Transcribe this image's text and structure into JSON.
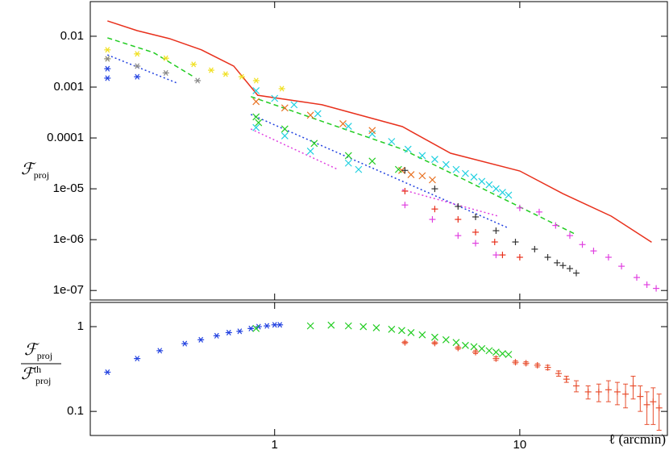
{
  "chart_data": [
    {
      "type": "scatter",
      "log_x": true,
      "log_y": true,
      "ylabel": {
        "main": "ℱ",
        "sub": "proj"
      },
      "xlim": [
        0.177,
        40
      ],
      "ylim": [
        6.5e-08,
        0.048
      ],
      "yticks": [
        0.01,
        0.001,
        0.0001,
        {
          "value": 1e-05,
          "label": "1e-05"
        },
        {
          "value": 1e-06,
          "label": "1e-06"
        },
        {
          "value": 1e-07,
          "label": "1e-07"
        }
      ],
      "series": [
        {
          "color": "#e8301c",
          "line": "solid",
          "x": [
            0.208,
            0.275,
            0.372,
            0.503,
            0.681,
            0.853,
            1.56,
            3.32,
            5.22,
            10,
            15.0,
            23.6,
            34.5
          ],
          "values": [
            0.02,
            0.0129,
            0.009,
            0.0054,
            0.00259,
            0.00069,
            0.00045,
            0.000167,
            5e-05,
            2.24e-05,
            8e-06,
            2.9e-06,
            8.9e-07
          ]
        },
        {
          "color": "#22cc22",
          "line": "dashed",
          "x": [
            0.208,
            0.32,
            0.467
          ],
          "values": [
            0.0093,
            0.0048,
            0.0016
          ]
        },
        {
          "color": "#22cc22",
          "line": "dashed",
          "x": [
            0.8,
            3.32,
            16.8
          ],
          "values": [
            0.00065,
            6e-05,
            1.29e-06
          ]
        },
        {
          "color": "#2040e0",
          "line": "dotted",
          "x": [
            0.208,
            0.4
          ],
          "values": [
            0.0043,
            0.0012
          ]
        },
        {
          "color": "#2040e0",
          "line": "dotted",
          "x": [
            0.8,
            8.86
          ],
          "values": [
            0.00029,
            1.74e-06
          ]
        },
        {
          "color": "#e040e0",
          "line": "dotted",
          "x": [
            0.8,
            1.81
          ],
          "values": [
            0.00015,
            2.4e-05
          ]
        },
        {
          "color": "#e040e0",
          "line": "dotted",
          "x": [
            3.32,
            8.2
          ],
          "values": [
            9.6e-06,
            2.88e-06
          ]
        },
        {
          "color": "#2040e0",
          "marker": "star",
          "x": [
            0.208,
            0.208,
            0.275
          ],
          "values": [
            0.0023,
            0.0015,
            0.0016
          ]
        },
        {
          "color": "#f0e020",
          "marker": "star",
          "x": [
            0.208,
            0.208,
            0.275,
            0.36,
            0.467,
            0.551,
            0.631,
            0.734,
            0.841,
            1.07
          ],
          "values": [
            0.0054,
            0.0036,
            0.0045,
            0.0037,
            0.0028,
            0.00215,
            0.0018,
            0.0016,
            0.00134,
            0.00093
          ]
        },
        {
          "color": "#888888",
          "marker": "star",
          "x": [
            0.208,
            0.275,
            0.36,
            0.485
          ],
          "values": [
            0.0036,
            0.00259,
            0.0019,
            0.00134
          ]
        },
        {
          "color": "#20d0e0",
          "marker": "x",
          "x": [
            0.84,
            1.0,
            1.2,
            1.5,
            2.0,
            2.5,
            3.0,
            3.5,
            4.0,
            4.5,
            5.0,
            5.5,
            6.0,
            6.5,
            7.0,
            7.5,
            8.0,
            8.5,
            9.0
          ],
          "values": [
            0.00085,
            0.0006,
            0.00045,
            0.0003,
            0.00017,
            0.00012,
            8.5e-05,
            6e-05,
            4.5e-05,
            3.8e-05,
            3e-05,
            2.4e-05,
            2e-05,
            1.7e-05,
            1.4e-05,
            1.2e-05,
            1e-05,
            8.5e-06,
            7.5e-06
          ]
        },
        {
          "color": "#20d0e0",
          "marker": "x",
          "x": [
            0.84,
            1.1,
            1.4,
            2.0,
            2.2
          ],
          "values": [
            0.00016,
            0.00011,
            5.5e-05,
            3.2e-05,
            2.4e-05
          ]
        },
        {
          "color": "#e87020",
          "marker": "x",
          "x": [
            0.84,
            1.1,
            1.4,
            1.9,
            2.5,
            3.3,
            3.6,
            4.0,
            4.4
          ],
          "values": [
            0.00052,
            0.00039,
            0.00028,
            0.00019,
            0.00014,
            2.3e-05,
            1.9e-05,
            1.8e-05,
            1.5e-05
          ]
        },
        {
          "color": "#22cc22",
          "marker": "x",
          "x": [
            0.84,
            0.86,
            1.1,
            1.45,
            2.0,
            2.5,
            3.2
          ],
          "values": [
            0.00026,
            0.0002,
            0.00015,
            7.8e-05,
            4.5e-05,
            3.5e-05,
            2.4e-05
          ]
        },
        {
          "color": "#333333",
          "marker": "plus",
          "x": [
            3.4,
            4.5,
            5.6,
            6.6,
            8.0,
            9.6,
            11.5,
            13,
            14.2,
            15,
            16,
            17
          ],
          "values": [
            2.3e-05,
            1e-05,
            4.5e-06,
            2.8e-06,
            1.5e-06,
            9e-07,
            6.5e-07,
            4.5e-07,
            3.5e-07,
            3.1e-07,
            2.7e-07,
            2.2e-07
          ]
        },
        {
          "color": "#e8301c",
          "marker": "plus",
          "x": [
            3.4,
            4.5,
            5.6,
            6.6,
            7.9,
            8.5,
            10
          ],
          "values": [
            9e-06,
            4e-06,
            2.5e-06,
            1.4e-06,
            9e-07,
            5e-07,
            4.5e-07
          ]
        },
        {
          "color": "#e040e0",
          "marker": "plus",
          "x": [
            3.4,
            4.4,
            5.6,
            6.6,
            8,
            10,
            12,
            14,
            16,
            18,
            20,
            23,
            26,
            30,
            33,
            36
          ],
          "values": [
            4.8e-06,
            2.5e-06,
            1.2e-06,
            8.5e-07,
            5e-07,
            4.2e-06,
            3.5e-06,
            1.9e-06,
            1.2e-06,
            8e-07,
            6e-07,
            4.5e-07,
            3e-07,
            1.8e-07,
            1.3e-07,
            1.1e-07
          ]
        }
      ]
    },
    {
      "type": "scatter",
      "log_x": true,
      "log_y": true,
      "ylabel": {
        "num": {
          "main": "ℱ",
          "sub": "proj"
        },
        "den": {
          "main": "ℱ",
          "sup": "th",
          "sub": "proj"
        }
      },
      "xlabel": "ℓ (arcmin)",
      "xlim": [
        0.177,
        40
      ],
      "ylim": [
        0.052,
        1.93
      ],
      "xticks": [
        1,
        10
      ],
      "yticks": [
        1,
        0.1
      ],
      "series": [
        {
          "color": "#2040e0",
          "marker": "star",
          "x": [
            0.208,
            0.275,
            0.34,
            0.43,
            0.5,
            0.58,
            0.65,
            0.72,
            0.8,
            0.86,
            0.93,
            1.0,
            1.05
          ],
          "values": [
            0.29,
            0.42,
            0.52,
            0.63,
            0.7,
            0.78,
            0.85,
            0.88,
            0.95,
            1.0,
            1.02,
            1.05,
            1.05
          ]
        },
        {
          "color": "#22cc22",
          "marker": "x",
          "x": [
            0.84,
            1.4,
            1.7,
            2.0,
            2.3,
            2.6,
            3.0,
            3.3,
            3.6,
            4,
            4.5,
            5,
            5.5,
            6,
            6.5,
            7,
            7.5,
            8,
            8.5,
            9
          ],
          "values": [
            0.95,
            1.02,
            1.04,
            1.02,
            1.0,
            0.97,
            0.93,
            0.9,
            0.85,
            0.8,
            0.75,
            0.7,
            0.65,
            0.6,
            0.58,
            0.55,
            0.52,
            0.5,
            0.48,
            0.47
          ]
        },
        {
          "color": "#e85030",
          "marker": "plus",
          "x": [
            3.4,
            4.5,
            5.6,
            6.6,
            8,
            9.6,
            10.6,
            11.8,
            13,
            14.4,
            15.5,
            17,
            19,
            21,
            23,
            25,
            27,
            29,
            31,
            33,
            35,
            37
          ],
          "values": [
            0.65,
            0.64,
            0.56,
            0.5,
            0.42,
            0.38,
            0.37,
            0.35,
            0.33,
            0.28,
            0.24,
            0.2,
            0.17,
            0.17,
            0.18,
            0.17,
            0.16,
            0.2,
            0.15,
            0.12,
            0.13,
            0.11
          ],
          "errors": [
            0.02,
            0.02,
            0.02,
            0.02,
            0.02,
            0.015,
            0.015,
            0.015,
            0.02,
            0.02,
            0.02,
            0.03,
            0.03,
            0.04,
            0.05,
            0.05,
            0.05,
            0.06,
            0.05,
            0.05,
            0.06,
            0.05
          ]
        }
      ]
    }
  ]
}
